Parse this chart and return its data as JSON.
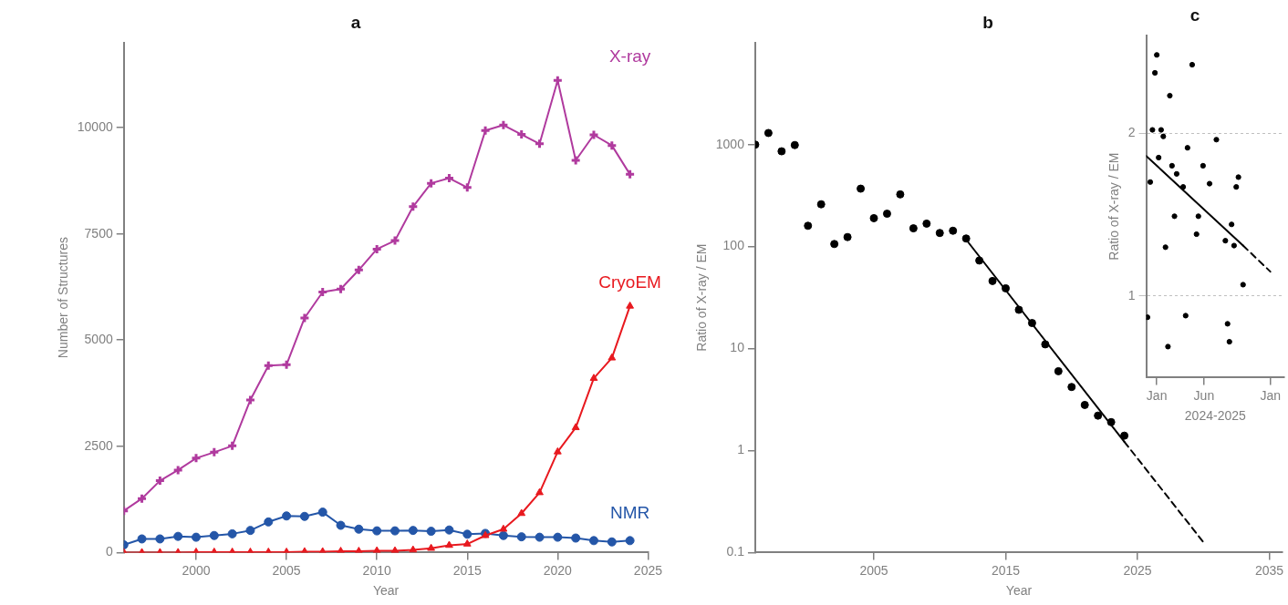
{
  "chart_data": [
    {
      "type": "line",
      "title": "a",
      "xlabel": "Year",
      "ylabel": "Number of Structures",
      "x": [
        1996,
        1997,
        1998,
        1999,
        2000,
        2001,
        2002,
        2003,
        2004,
        2005,
        2006,
        2007,
        2008,
        2009,
        2010,
        2011,
        2012,
        2013,
        2014,
        2015,
        2016,
        2017,
        2018,
        2019,
        2020,
        2021,
        2022,
        2023,
        2024
      ],
      "xlim": [
        1996,
        2025
      ],
      "xticks": [
        2000,
        2005,
        2010,
        2015,
        2020,
        2025
      ],
      "ylim": [
        0,
        12000
      ],
      "yticks": [
        0,
        2500,
        5000,
        7500,
        10000
      ],
      "grid": false,
      "series": [
        {
          "name": "X-ray",
          "color": "#b03a9e",
          "marker": "cross",
          "values": [
            980,
            1270,
            1690,
            1940,
            2220,
            2360,
            2510,
            3590,
            4400,
            4420,
            5520,
            6130,
            6200,
            6650,
            7140,
            7340,
            8140,
            8690,
            8810,
            8590,
            9930,
            10060,
            9840,
            9620,
            11110,
            9230,
            9830,
            9580,
            8900
          ]
        },
        {
          "name": "CryoEM",
          "color": "#e8191f",
          "marker": "triangle",
          "values": [
            0,
            0,
            0,
            0,
            10,
            10,
            10,
            10,
            10,
            10,
            20,
            20,
            30,
            30,
            40,
            40,
            60,
            100,
            170,
            200,
            400,
            550,
            920,
            1410,
            2370,
            2940,
            4100,
            4580,
            5800
          ]
        },
        {
          "name": "NMR",
          "color": "#2456a8",
          "marker": "circle",
          "values": [
            180,
            320,
            320,
            380,
            360,
            400,
            440,
            520,
            720,
            860,
            850,
            950,
            640,
            550,
            510,
            510,
            520,
            500,
            530,
            430,
            450,
            400,
            370,
            360,
            360,
            340,
            280,
            250,
            280
          ]
        }
      ]
    },
    {
      "type": "scatter",
      "title": "b",
      "xlabel": "Year",
      "ylabel": "Ratio of X-ray / EM",
      "log": "y",
      "marker": "circle",
      "grid": false,
      "xlim": [
        1996,
        2036
      ],
      "xticks": [
        2005,
        2015,
        2025,
        2035
      ],
      "ylim": [
        0.1,
        10000
      ],
      "yticks": [
        0.1,
        1,
        10,
        100,
        1000
      ],
      "x": [
        1996,
        1997,
        1998,
        1999,
        2000,
        2001,
        2002,
        2003,
        2004,
        2005,
        2006,
        2007,
        2008,
        2009,
        2010,
        2011,
        2012,
        2013,
        2014,
        2015,
        2016,
        2017,
        2018,
        2019,
        2020,
        2021,
        2022,
        2023,
        2024
      ],
      "series": [
        {
          "color": "#000000",
          "values": [
            1000,
            1300,
            860,
            990,
            160,
            260,
            106,
            124,
            370,
            190,
            210,
            325,
            151,
            168,
            136,
            143,
            120,
            73,
            46,
            39,
            24,
            17.8,
            11,
            6.0,
            4.2,
            2.8,
            2.2,
            1.9,
            1.4
          ]
        },
        {
          "type": "line",
          "color": "#000000",
          "marker": "none",
          "line_style": "solid",
          "x": [
            2012,
            2024
          ],
          "values": [
            117,
            1.22
          ]
        },
        {
          "type": "line",
          "color": "#000000",
          "marker": "none",
          "line_style": "dashed",
          "x": [
            2024,
            2030
          ],
          "values": [
            1.22,
            0.126
          ]
        }
      ]
    },
    {
      "type": "scatter",
      "title": "c",
      "xlabel": "2024-2025",
      "ylabel": "Ratio of X-ray / EM",
      "marker": "circle",
      "grid": "y",
      "xlim": [
        "2023-11-28",
        "2025-02-15"
      ],
      "xticks": [
        {
          "value": "2024-01-01",
          "label": "Jan"
        },
        {
          "value": "2024-06-01",
          "label": "Jun"
        },
        {
          "value": "2025-01-01",
          "label": "Jan"
        }
      ],
      "ylim": [
        0.5,
        2.6
      ],
      "yticks": [
        1,
        2
      ],
      "x": [
        "2023-12-02",
        "2023-12-11",
        "2023-12-18",
        "2023-12-26",
        "2024-01-01",
        "2024-01-07",
        "2024-01-15",
        "2024-01-22",
        "2024-01-29",
        "2024-02-06",
        "2024-02-12",
        "2024-02-19",
        "2024-02-27",
        "2024-03-05",
        "2024-03-26",
        "2024-04-03",
        "2024-04-09",
        "2024-04-24",
        "2024-05-08",
        "2024-05-14",
        "2024-05-29",
        "2024-06-19",
        "2024-07-11",
        "2024-08-09",
        "2024-08-16",
        "2024-08-22",
        "2024-08-29",
        "2024-09-06",
        "2024-09-13",
        "2024-09-20",
        "2024-10-05"
      ],
      "series": [
        {
          "color": "#000000",
          "values": [
            0.87,
            1.7,
            2.02,
            2.37,
            2.48,
            1.85,
            2.02,
            1.98,
            1.3,
            0.69,
            2.23,
            1.8,
            1.49,
            1.75,
            1.67,
            0.88,
            1.91,
            2.42,
            1.38,
            1.49,
            1.8,
            1.69,
            1.96,
            1.34,
            0.83,
            0.72,
            1.44,
            1.31,
            1.67,
            1.73,
            1.07
          ]
        },
        {
          "type": "line",
          "color": "#000000",
          "marker": "none",
          "line_style": "solid",
          "x": [
            "2023-11-28",
            "2024-10-05"
          ],
          "values": [
            1.86,
            1.31
          ]
        },
        {
          "type": "line",
          "color": "#000000",
          "marker": "none",
          "line_style": "dashed",
          "x": [
            "2024-10-05",
            "2025-01-01"
          ],
          "values": [
            1.31,
            1.15
          ]
        }
      ]
    }
  ]
}
